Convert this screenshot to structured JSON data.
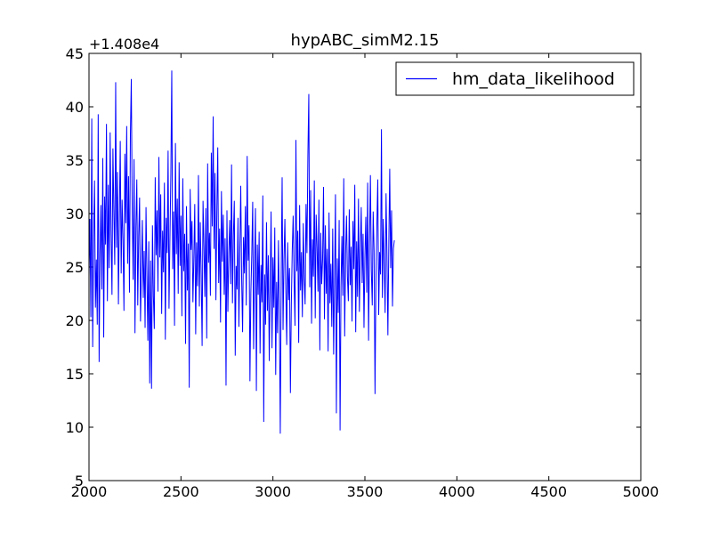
{
  "chart_data": {
    "type": "line",
    "title": "hypABC_simM2.15",
    "xlabel": "",
    "ylabel": "",
    "y_offset_label": "+1.408e4",
    "xlim": [
      2000,
      5000
    ],
    "ylim": [
      5,
      45
    ],
    "x_ticks": [
      2000,
      2500,
      3000,
      3500,
      4000,
      4500,
      5000
    ],
    "y_ticks": [
      5,
      10,
      15,
      20,
      25,
      30,
      35,
      40,
      45
    ],
    "x_tick_labels": [
      "2000",
      "2500",
      "3000",
      "3500",
      "4000",
      "4500",
      "5000"
    ],
    "y_tick_labels": [
      "5",
      "10",
      "15",
      "20",
      "25",
      "30",
      "35",
      "40",
      "45"
    ],
    "grid": false,
    "legend_position": "top-right",
    "series": [
      {
        "name": "hm_data_likelihood",
        "color": "#0000ff",
        "x_start": 2000,
        "x_step": 5,
        "values": [
          24.1,
          29.5,
          20.3,
          38.9,
          17.5,
          27.8,
          33.1,
          21.2,
          25.7,
          19.6,
          39.3,
          16.1,
          26.4,
          30.8,
          22.9,
          35.2,
          18.4,
          31.6,
          27.1,
          38.4,
          21.8,
          32.7,
          24.9,
          37.6,
          28.3,
          22.4,
          36.1,
          30.4,
          25.2,
          42.3,
          26.8,
          33.9,
          21.5,
          29.7,
          36.8,
          24.4,
          31.3,
          27.5,
          20.9,
          35.6,
          29.1,
          38.2,
          25.3,
          33.5,
          22.6,
          37.4,
          42.6,
          30.1,
          23.8,
          35.1,
          18.8,
          28.7,
          33.2,
          21.4,
          27.9,
          31.5,
          19.9,
          24.7,
          29.4,
          22.1,
          26.5,
          19.3,
          30.6,
          24.2,
          18.1,
          27.4,
          14.1,
          25.6,
          13.6,
          28.9,
          22.3,
          19.2,
          33.4,
          26.1,
          30.3,
          22.7,
          35.3,
          25.9,
          31.8,
          20.6,
          28.4,
          24.5,
          32.9,
          18.2,
          29.6,
          26.3,
          35.9,
          21.1,
          27.6,
          33.7,
          43.4,
          24.8,
          30.2,
          19.5,
          36.6,
          26.2,
          31.4,
          22.5,
          34.8,
          25.1,
          29.8,
          20.4,
          33.3,
          24.6,
          28.1,
          17.8,
          30.7,
          22.8,
          27.2,
          13.7,
          32.3,
          26.6,
          29.3,
          21.7,
          25.8,
          30.9,
          18.7,
          27.3,
          23.2,
          33.6,
          21.3,
          29.2,
          24.3,
          17.6,
          31.2,
          26.9,
          22.2,
          30.5,
          18.3,
          34.7,
          25.4,
          28.2,
          22.3,
          35.7,
          28.8,
          39.1,
          26.7,
          33.8,
          21.9,
          30.1,
          36.2,
          23.5,
          28.6,
          19.8,
          32.1,
          25.5,
          29.9,
          22.4,
          27.7,
          13.9,
          30.3,
          20.8,
          26.3,
          29.4,
          23.4,
          34.6,
          21.6,
          27.9,
          31.2,
          16.7,
          25.1,
          22.9,
          29.6,
          19.4,
          26.6,
          32.6,
          23.9,
          18.9,
          27.8,
          24.4,
          30.7,
          21.4,
          35.4,
          25.6,
          28.9,
          14.3,
          22.6,
          26.2,
          31.1,
          17.3,
          24.8,
          30.5,
          13.4,
          27.1,
          22.4,
          28.3,
          16.9,
          25.2,
          21.7,
          31.7,
          10.5,
          24.3,
          19.6,
          29.2,
          20.9,
          26.1,
          16.2,
          23.3,
          30.2,
          17.4,
          25.9,
          21.2,
          28.7,
          14.9,
          23.6,
          18.8,
          27.5,
          20.6,
          9.4,
          24.2,
          33.4,
          19.1,
          25.7,
          29.5,
          22.9,
          17.7,
          27.3,
          21.9,
          24.9,
          13.2,
          21.4,
          26.6,
          29.8,
          23.7,
          19.5,
          36.9,
          24.6,
          28.4,
          17.9,
          30.8,
          22.8,
          26.4,
          20.3,
          29.1,
          23.9,
          21.5,
          30.9,
          26.3,
          35.4,
          41.2,
          23.1,
          32.2,
          19.7,
          27.6,
          24.1,
          33.1,
          20.2,
          29.9,
          26.8,
          22.7,
          31.3,
          17.2,
          28.2,
          23.4,
          25.7,
          32.5,
          20.1,
          28.9,
          22.5,
          26.7,
          17.1,
          30.1,
          21.6,
          25.3,
          19.4,
          28.6,
          16.8,
          23.6,
          31.8,
          11.3,
          25.8,
          20.7,
          29.4,
          9.7,
          23.1,
          27.9,
          22.3,
          33.3,
          18.5,
          26.2,
          29.8,
          24.1,
          21.8,
          30.4,
          23.3,
          26.9,
          19.9,
          29.3,
          24.8,
          32.7,
          18.9,
          27.4,
          22.2,
          31.4,
          20.8,
          26.3,
          30.6,
          23.5,
          28.1,
          19.3,
          25.9,
          29.7,
          22.6,
          32.9,
          18.1,
          27.2,
          33.6,
          24.7,
          21.4,
          30.2,
          26.5,
          13.1,
          23.8,
          28.8,
          33.2,
          20.5,
          26.4,
          24.3,
          37.9,
          22.1,
          29.5,
          25.4,
          20.7,
          31.9,
          26.2,
          18.6,
          27.1,
          34.2,
          24.9,
          30.3,
          21.3,
          26.7,
          27.5
        ]
      }
    ]
  }
}
